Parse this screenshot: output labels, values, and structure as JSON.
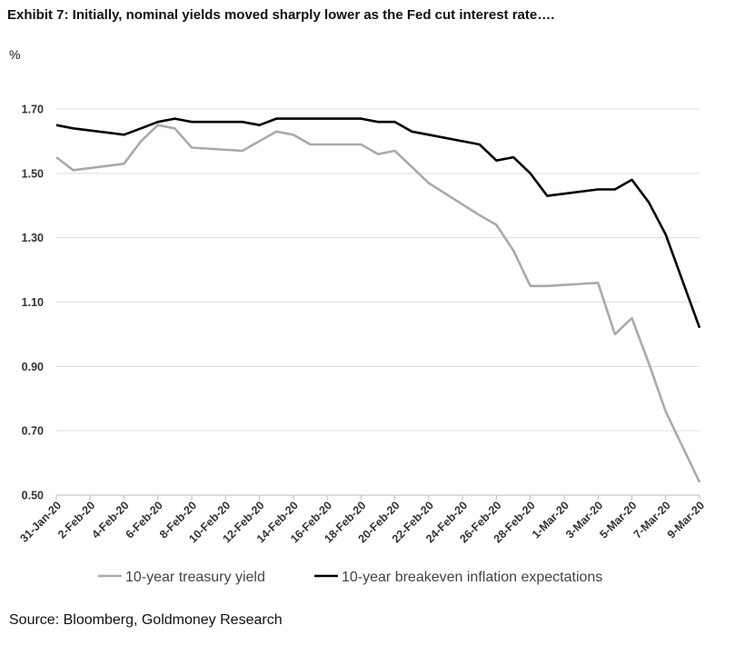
{
  "title": "Exhibit 7: Initially, nominal yields moved sharply lower as the Fed cut interest rate….",
  "source": "Source: Bloomberg, Goldmoney Research",
  "chart_data": {
    "type": "line",
    "ylabel": "%",
    "ylim": [
      0.5,
      1.7
    ],
    "yticks": [
      "1.70",
      "1.50",
      "1.30",
      "1.10",
      "0.90",
      "0.70",
      "0.50"
    ],
    "grid": true,
    "legend_position": "bottom",
    "x_tick_labels": [
      "31-Jan-20",
      "2-Feb-20",
      "4-Feb-20",
      "6-Feb-20",
      "8-Feb-20",
      "10-Feb-20",
      "12-Feb-20",
      "14-Feb-20",
      "16-Feb-20",
      "18-Feb-20",
      "20-Feb-20",
      "22-Feb-20",
      "24-Feb-20",
      "26-Feb-20",
      "28-Feb-20",
      "1-Mar-20",
      "3-Mar-20",
      "5-Mar-20",
      "7-Mar-20",
      "9-Mar-20"
    ],
    "x_range": [
      "2020-01-31",
      "2020-03-09"
    ],
    "series": [
      {
        "name": "10-year treasury yield",
        "color": "#aaaaaa",
        "x": [
          "2020-01-31",
          "2020-02-01",
          "2020-02-04",
          "2020-02-05",
          "2020-02-06",
          "2020-02-07",
          "2020-02-08",
          "2020-02-11",
          "2020-02-12",
          "2020-02-13",
          "2020-02-14",
          "2020-02-15",
          "2020-02-18",
          "2020-02-19",
          "2020-02-20",
          "2020-02-21",
          "2020-02-22",
          "2020-02-25",
          "2020-02-26",
          "2020-02-27",
          "2020-02-28",
          "2020-02-29",
          "2020-03-03",
          "2020-03-04",
          "2020-03-05",
          "2020-03-06",
          "2020-03-07",
          "2020-03-09"
        ],
        "values": [
          1.55,
          1.51,
          1.53,
          1.6,
          1.65,
          1.64,
          1.58,
          1.57,
          1.6,
          1.63,
          1.62,
          1.59,
          1.59,
          1.56,
          1.57,
          1.52,
          1.47,
          1.37,
          1.34,
          1.26,
          1.15,
          1.15,
          1.16,
          1.0,
          1.05,
          0.91,
          0.76,
          0.54
        ]
      },
      {
        "name": "10-year breakeven inflation expectations",
        "color": "#000000",
        "x": [
          "2020-01-31",
          "2020-02-01",
          "2020-02-04",
          "2020-02-05",
          "2020-02-06",
          "2020-02-07",
          "2020-02-08",
          "2020-02-11",
          "2020-02-12",
          "2020-02-13",
          "2020-02-14",
          "2020-02-15",
          "2020-02-18",
          "2020-02-19",
          "2020-02-20",
          "2020-02-21",
          "2020-02-22",
          "2020-02-25",
          "2020-02-26",
          "2020-02-27",
          "2020-02-28",
          "2020-02-29",
          "2020-03-03",
          "2020-03-04",
          "2020-03-05",
          "2020-03-06",
          "2020-03-07",
          "2020-03-09"
        ],
        "values": [
          1.65,
          1.64,
          1.62,
          1.64,
          1.66,
          1.67,
          1.66,
          1.66,
          1.65,
          1.67,
          1.67,
          1.67,
          1.67,
          1.66,
          1.66,
          1.63,
          1.62,
          1.59,
          1.54,
          1.55,
          1.5,
          1.43,
          1.45,
          1.45,
          1.48,
          1.41,
          1.31,
          1.02
        ]
      }
    ]
  }
}
